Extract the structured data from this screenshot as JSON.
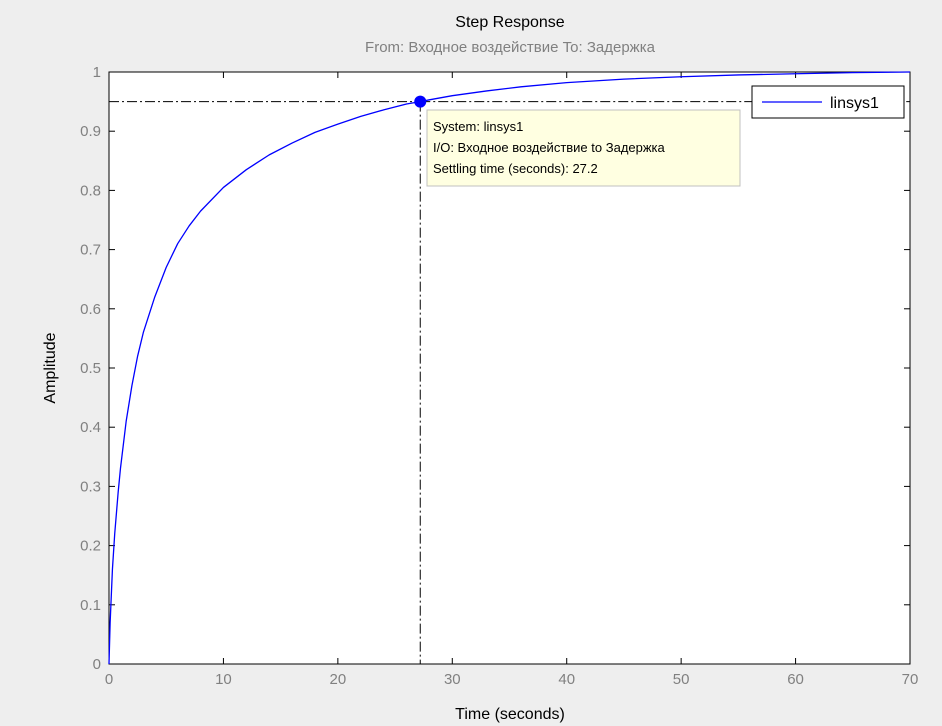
{
  "chart_data": {
    "type": "line",
    "title": "Step Response",
    "subtitle": "From: Входное воздействие  To: Задержка",
    "xlabel": "Time (seconds)",
    "ylabel": "Amplitude",
    "xlim": [
      0,
      70
    ],
    "ylim": [
      0,
      1
    ],
    "xticks": [
      0,
      10,
      20,
      30,
      40,
      50,
      60,
      70
    ],
    "yticks": [
      0,
      0.1,
      0.2,
      0.3,
      0.4,
      0.5,
      0.6,
      0.7,
      0.8,
      0.9,
      1
    ],
    "grid": false,
    "legend_position": "top-right",
    "series": [
      {
        "name": "linsys1",
        "color": "#0000ff",
        "x": [
          0,
          0.1,
          0.3,
          0.5,
          0.8,
          1,
          1.5,
          2,
          2.5,
          3,
          4,
          5,
          6,
          7,
          8,
          10,
          12,
          14,
          16,
          18,
          20,
          22,
          24,
          26,
          27.2,
          28,
          30,
          33,
          36,
          40,
          45,
          50,
          55,
          60,
          65,
          70
        ],
        "y": [
          0,
          0.07,
          0.16,
          0.22,
          0.29,
          0.33,
          0.41,
          0.47,
          0.52,
          0.56,
          0.62,
          0.67,
          0.71,
          0.74,
          0.765,
          0.805,
          0.835,
          0.86,
          0.88,
          0.898,
          0.912,
          0.925,
          0.936,
          0.946,
          0.95,
          0.953,
          0.96,
          0.968,
          0.975,
          0.982,
          0.988,
          0.992,
          0.995,
          0.997,
          0.999,
          1.0
        ]
      }
    ],
    "reference_lines": {
      "steady_state": 1.0,
      "settling_band": 0.95,
      "settling_time": 27.2
    },
    "datatip": {
      "x": 27.2,
      "y": 0.95,
      "lines": [
        "System: linsys1",
        "I/O: Входное воздействие to Задержка",
        "Settling time (seconds): 27.2"
      ],
      "background": "#ffffe1"
    }
  }
}
